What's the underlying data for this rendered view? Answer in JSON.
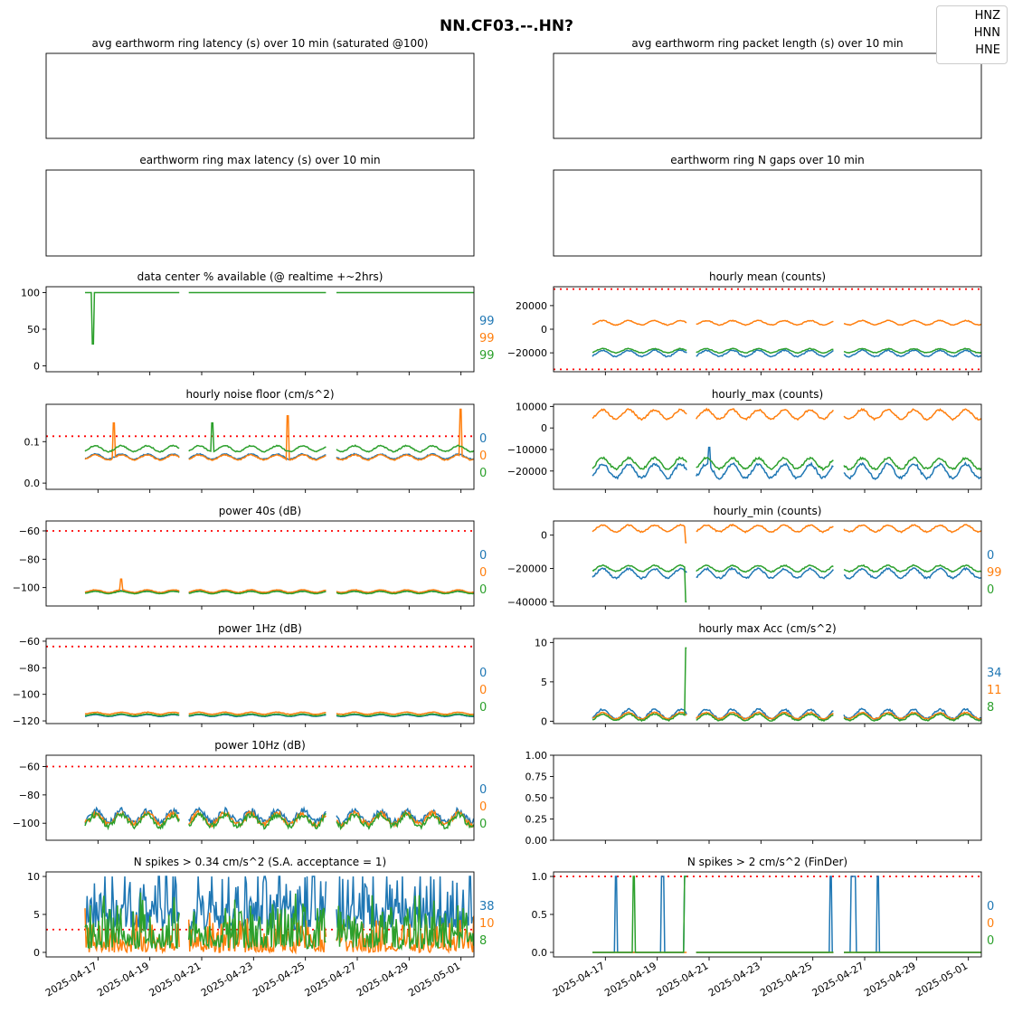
{
  "figure": {
    "title": "NN.CF03.--.HN?",
    "legend": [
      "HNZ",
      "HNN",
      "HNE"
    ],
    "colors": {
      "HNZ": "#1f77b4",
      "HNN": "#ff7f0e",
      "HNE": "#2ca02c",
      "threshold": "#ff0000"
    }
  },
  "chart_data": [
    {
      "id": "p1",
      "type": "line",
      "title": "avg earthworm ring latency (s)   over 10 min (saturated @100)",
      "xlim": [
        "2025-04-15",
        "2025-05-01T12:00"
      ],
      "series": [],
      "yticks": [],
      "show_xticks": false
    },
    {
      "id": "p2",
      "type": "line",
      "title": "avg earthworm ring packet length (s)   over 10 min",
      "xlim": [
        "2025-04-15",
        "2025-05-01T12:00"
      ],
      "series": [],
      "yticks": [],
      "show_xticks": false
    },
    {
      "id": "p3",
      "type": "line",
      "title": "earthworm ring max latency (s)   over 10 min",
      "xlim": [
        "2025-04-15",
        "2025-05-01T12:00"
      ],
      "series": [],
      "yticks": [],
      "show_xticks": false
    },
    {
      "id": "p4",
      "type": "line",
      "title": "earthworm ring N gaps   over 10 min",
      "xlim": [
        "2025-04-15",
        "2025-05-01T12:00"
      ],
      "series": [],
      "yticks": [],
      "show_xticks": false
    },
    {
      "id": "p5",
      "type": "line",
      "title": "data center % available (@ realtime +~2hrs)",
      "ylim": [
        -8,
        108
      ],
      "yticks": [
        "0",
        "50",
        "100"
      ],
      "ytick_values": [
        0,
        50,
        100
      ],
      "series": [
        {
          "name": "HNZ",
          "base": 100
        },
        {
          "name": "HNN",
          "base": 100
        },
        {
          "name": "HNE",
          "base": 100,
          "dip": [
            0.3,
            30
          ]
        }
      ],
      "side_labels": [
        "99",
        "99",
        "99"
      ]
    },
    {
      "id": "p6",
      "type": "line",
      "title": "hourly mean (counts)",
      "ylim": [
        -36000,
        36000
      ],
      "yticks": [
        "−20000",
        "0",
        "20000"
      ],
      "ytick_values": [
        -20000,
        0,
        20000
      ],
      "thresholds": [
        34000,
        -34000
      ],
      "series": [
        {
          "name": "HNZ",
          "base": -20500,
          "amp": 2600
        },
        {
          "name": "HNN",
          "base": 5500,
          "amp": 1800
        },
        {
          "name": "HNE",
          "base": -18200,
          "amp": 1700
        }
      ]
    },
    {
      "id": "p7",
      "type": "line",
      "title": "hourly noise floor (cm/s^2)",
      "ylim": [
        -0.015,
        0.19
      ],
      "yticks": [
        "0.0",
        "0.1"
      ],
      "ytick_values": [
        0,
        0.1
      ],
      "thresholds": [
        0.113
      ],
      "series": [
        {
          "name": "HNZ",
          "base": 0.064,
          "amp": 0.006
        },
        {
          "name": "HNN",
          "base": 0.062,
          "amp": 0.006,
          "spikes": [
            [
              1.1,
              0.145
            ],
            [
              7.8,
              0.162
            ],
            [
              14.5,
              0.178
            ]
          ]
        },
        {
          "name": "HNE",
          "base": 0.083,
          "amp": 0.007,
          "spikes": [
            [
              4.9,
              0.145
            ]
          ]
        }
      ],
      "side_labels": [
        "0",
        "0",
        "0"
      ]
    },
    {
      "id": "p8",
      "type": "line",
      "title": "hourly_max (counts)",
      "ylim": [
        -28500,
        11000
      ],
      "yticks": [
        "−20000",
        "−10000",
        "0",
        "10000"
      ],
      "ytick_values": [
        -20000,
        -10000,
        0,
        10000
      ],
      "series": [
        {
          "name": "HNZ",
          "base": -20000,
          "amp": 3200,
          "spikes": [
            [
              4.5,
              -9000
            ]
          ]
        },
        {
          "name": "HNN",
          "base": 6300,
          "amp": 2200
        },
        {
          "name": "HNE",
          "base": -16500,
          "amp": 2500
        }
      ]
    },
    {
      "id": "p9",
      "type": "line",
      "title": "power 40s (dB)",
      "ylim": [
        -113,
        -53
      ],
      "yticks": [
        "−100",
        "−80",
        "−60"
      ],
      "ytick_values": [
        -100,
        -80,
        -60
      ],
      "thresholds": [
        -60
      ],
      "series": [
        {
          "name": "HNZ",
          "base": -103,
          "amp": 0.8
        },
        {
          "name": "HNN",
          "base": -102.5,
          "amp": 0.9,
          "spikes": [
            [
              1.4,
              -94
            ]
          ]
        },
        {
          "name": "HNE",
          "base": -103.5,
          "amp": 0.8
        }
      ],
      "side_labels": [
        "0",
        "0",
        "0"
      ]
    },
    {
      "id": "p10",
      "type": "line",
      "title": "hourly_min (counts)",
      "ylim": [
        -42500,
        8500
      ],
      "yticks": [
        "−40000",
        "−20000",
        "0"
      ],
      "ytick_values": [
        -40000,
        -20000,
        0
      ],
      "series": [
        {
          "name": "HNZ",
          "base": -23000,
          "amp": 2800
        },
        {
          "name": "HNN",
          "base": 4000,
          "amp": 2000,
          "spikes": [
            [
              3.6,
              -4500
            ]
          ]
        },
        {
          "name": "HNE",
          "base": -20000,
          "amp": 1800,
          "spikes": [
            [
              3.6,
              -40000
            ]
          ]
        }
      ],
      "side_labels": [
        "0",
        "99",
        "0"
      ]
    },
    {
      "id": "p11",
      "type": "line",
      "title": "power 1Hz (dB)",
      "ylim": [
        -122,
        -58
      ],
      "yticks": [
        "−120",
        "−100",
        "−80",
        "−60"
      ],
      "ytick_values": [
        -120,
        -100,
        -80,
        -60
      ],
      "thresholds": [
        -64
      ],
      "series": [
        {
          "name": "HNZ",
          "base": -116,
          "amp": 0.7
        },
        {
          "name": "HNN",
          "base": -114.2,
          "amp": 0.8
        },
        {
          "name": "HNE",
          "base": -115.5,
          "amp": 0.7
        }
      ],
      "side_labels": [
        "0",
        "0",
        "0"
      ]
    },
    {
      "id": "p12",
      "type": "line",
      "title": "hourly max Acc (cm/s^2)",
      "ylim": [
        -0.3,
        10.5
      ],
      "yticks": [
        "0",
        "5",
        "10"
      ],
      "ytick_values": [
        0,
        5,
        10
      ],
      "series": [
        {
          "name": "HNZ",
          "base": 0.9,
          "amp": 0.6
        },
        {
          "name": "HNN",
          "base": 0.7,
          "amp": 0.4
        },
        {
          "name": "HNE",
          "base": 0.5,
          "amp": 0.4,
          "spikes": [
            [
              3.6,
              9.3
            ]
          ]
        }
      ],
      "side_labels": [
        "34",
        "11",
        "8"
      ]
    },
    {
      "id": "p13",
      "type": "line",
      "title": "power 10Hz (dB)",
      "ylim": [
        -112,
        -52
      ],
      "yticks": [
        "−100",
        "−80",
        "−60"
      ],
      "ytick_values": [
        -100,
        -80,
        -60
      ],
      "thresholds": [
        -60
      ],
      "series": [
        {
          "name": "HNZ",
          "base": -95,
          "amp": 8
        },
        {
          "name": "HNN",
          "base": -97,
          "amp": 8
        },
        {
          "name": "HNE",
          "base": -98,
          "amp": 8
        }
      ],
      "side_labels": [
        "0",
        "0",
        "0"
      ]
    },
    {
      "id": "p14",
      "type": "line",
      "title": "",
      "ylim": [
        0,
        1
      ],
      "yticks": [
        "0.00",
        "0.25",
        "0.50",
        "0.75",
        "1.00"
      ],
      "ytick_values": [
        0,
        0.25,
        0.5,
        0.75,
        1
      ],
      "series": []
    },
    {
      "id": "p15",
      "type": "line",
      "title": "N spikes > 0.34 cm/s^2 (S.A. acceptance = 1)",
      "ylim": [
        -0.6,
        10.6
      ],
      "yticks": [
        "0",
        "5",
        "10"
      ],
      "ytick_values": [
        0,
        5,
        10
      ],
      "thresholds": [
        3
      ],
      "series": [
        {
          "name": "HNZ",
          "base": 4,
          "amp": 6
        },
        {
          "name": "HNN",
          "base": 1,
          "amp": 3
        },
        {
          "name": "HNE",
          "base": 1.5,
          "amp": 4
        }
      ],
      "side_labels": [
        "38",
        "10",
        "8"
      ],
      "xticks": [
        "2025-04-17",
        "2025-04-19",
        "2025-04-21",
        "2025-04-23",
        "2025-04-25",
        "2025-04-27",
        "2025-04-29",
        "2025-05-01"
      ]
    },
    {
      "id": "p16",
      "type": "line",
      "title": "N spikes > 2 cm/s^2 (FinDer)",
      "ylim": [
        -0.06,
        1.06
      ],
      "yticks": [
        "0.0",
        "0.5",
        "1.0"
      ],
      "ytick_values": [
        0,
        0.5,
        1
      ],
      "thresholds": [
        1
      ],
      "series": [
        {
          "name": "HNZ",
          "events": [
            0.9,
            2.7,
            3.6,
            9.2,
            10.0,
            10.1,
            11.0
          ]
        },
        {
          "name": "HNN",
          "events": []
        },
        {
          "name": "HNE",
          "events": [
            1.6,
            3.6
          ]
        }
      ],
      "side_labels": [
        "0",
        "0",
        "0"
      ],
      "xticks": [
        "2025-04-17",
        "2025-04-19",
        "2025-04-21",
        "2025-04-23",
        "2025-04-25",
        "2025-04-27",
        "2025-04-29",
        "2025-05-01"
      ]
    }
  ]
}
